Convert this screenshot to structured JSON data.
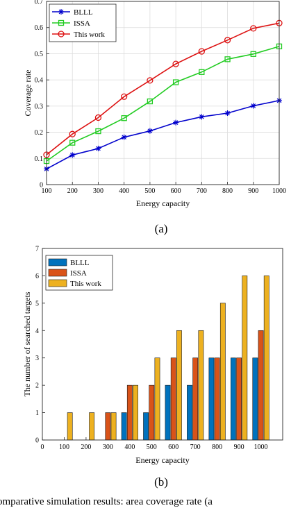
{
  "chart_data": [
    {
      "type": "line",
      "sublabel": "(a)",
      "xlabel": "Energy capacity",
      "ylabel": "Coverage rate",
      "x": [
        100,
        200,
        300,
        400,
        500,
        600,
        700,
        800,
        900,
        1000
      ],
      "xlim": [
        100,
        1000
      ],
      "ylim": [
        0,
        0.7
      ],
      "xticks": [
        "100",
        "200",
        "300",
        "400",
        "500",
        "600",
        "700",
        "800",
        "900",
        "1000"
      ],
      "yticks": [
        "0",
        "0.1",
        "0.2",
        "0.3",
        "0.4",
        "0.5",
        "0.6",
        "0.7"
      ],
      "grid": true,
      "legend_position": "top-left",
      "series": [
        {
          "name": "BLLL",
          "color": "#0000cc",
          "marker": "asterisk",
          "values": [
            0.06,
            0.113,
            0.138,
            0.181,
            0.205,
            0.237,
            0.259,
            0.273,
            0.301,
            0.321
          ]
        },
        {
          "name": "ISSA",
          "color": "#22cc22",
          "marker": "square",
          "values": [
            0.09,
            0.16,
            0.204,
            0.254,
            0.318,
            0.391,
            0.43,
            0.479,
            0.499,
            0.528
          ]
        },
        {
          "name": "This work",
          "color": "#dd1111",
          "marker": "circle",
          "values": [
            0.114,
            0.193,
            0.256,
            0.336,
            0.398,
            0.461,
            0.509,
            0.552,
            0.597,
            0.617
          ]
        }
      ]
    },
    {
      "type": "bar",
      "sublabel": "(b)",
      "xlabel": "Energy capacity",
      "ylabel": "The number of searched targets",
      "categories": [
        "100",
        "200",
        "300",
        "400",
        "500",
        "600",
        "700",
        "800",
        "900",
        "1000"
      ],
      "xticks": [
        "0",
        "100",
        "200",
        "300",
        "400",
        "500",
        "600",
        "700",
        "800",
        "900",
        "1000"
      ],
      "yticks": [
        "0",
        "1",
        "2",
        "3",
        "4",
        "5",
        "6",
        "7"
      ],
      "ylim": [
        0,
        7
      ],
      "grid": false,
      "legend_position": "top-left",
      "series": [
        {
          "name": "BLLL",
          "color": "#0072BD",
          "values": [
            0,
            0,
            0,
            1,
            1,
            2,
            2,
            3,
            3,
            3
          ]
        },
        {
          "name": "ISSA",
          "color": "#D95319",
          "values": [
            0,
            0,
            1,
            2,
            2,
            3,
            3,
            3,
            3,
            4
          ]
        },
        {
          "name": "This work",
          "color": "#EDB120",
          "values": [
            1,
            1,
            1,
            2,
            3,
            4,
            4,
            5,
            6,
            6
          ]
        }
      ]
    }
  ],
  "caption": "Comparative simulation results: area coverage rate (a"
}
